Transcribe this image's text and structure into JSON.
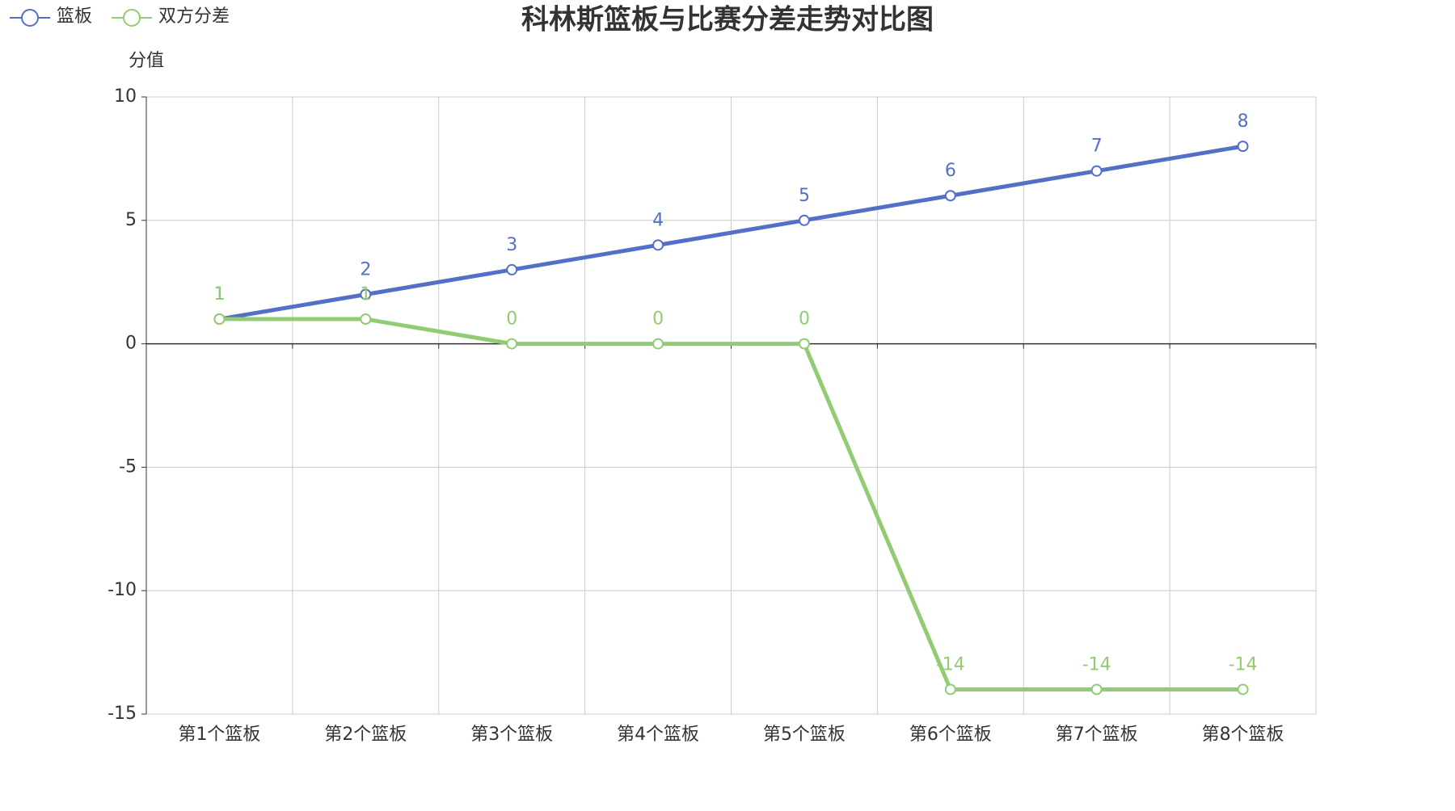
{
  "chart_data": {
    "type": "line",
    "title": "科林斯篮板与比赛分差走势对比图",
    "y_label": "分值",
    "categories": [
      "第1个篮板",
      "第2个篮板",
      "第3个篮板",
      "第4个篮板",
      "第5个篮板",
      "第6个篮板",
      "第7个篮板",
      "第8个篮板"
    ],
    "series": [
      {
        "name": "篮板",
        "color": "#5470c6",
        "values": [
          1,
          2,
          3,
          4,
          5,
          6,
          7,
          8
        ]
      },
      {
        "name": "双方分差",
        "color": "#91cc75",
        "values": [
          1,
          1,
          0,
          0,
          0,
          -14,
          -14,
          -14
        ]
      }
    ],
    "ylim": [
      -15,
      10
    ],
    "yticks": [
      -15,
      -10,
      -5,
      0,
      5,
      10
    ],
    "grid": true
  }
}
